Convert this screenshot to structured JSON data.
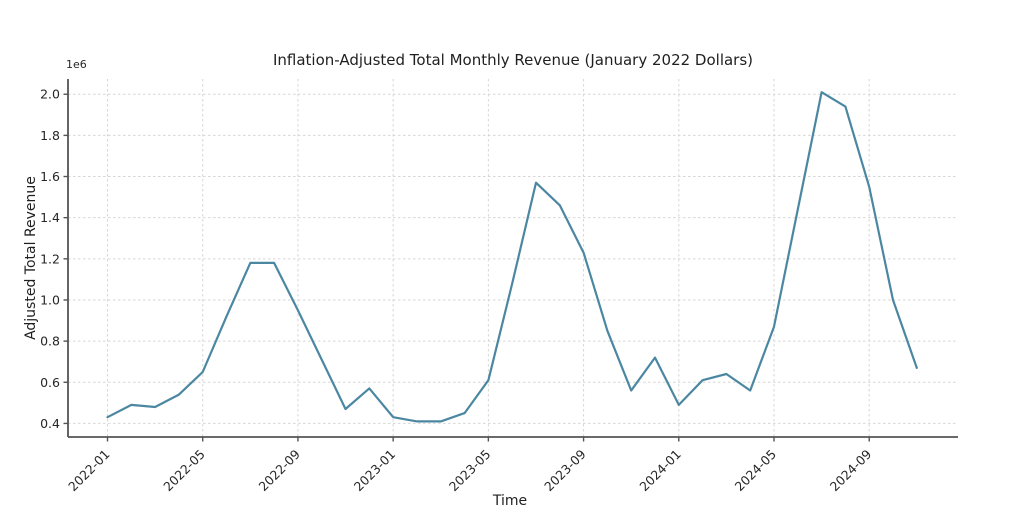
{
  "chart_data": {
    "type": "line",
    "title": "Inflation-Adjusted Total Monthly Revenue (January 2022 Dollars)",
    "xlabel": "Time",
    "ylabel": "Adjusted Total Revenue",
    "y_axis_multiplier_label": "1e6",
    "x": [
      "2022-01",
      "2022-02",
      "2022-03",
      "2022-04",
      "2022-05",
      "2022-06",
      "2022-07",
      "2022-08",
      "2022-09",
      "2022-10",
      "2022-11",
      "2022-12",
      "2023-01",
      "2023-02",
      "2023-03",
      "2023-04",
      "2023-05",
      "2023-06",
      "2023-07",
      "2023-08",
      "2023-09",
      "2023-10",
      "2023-11",
      "2023-12",
      "2024-01",
      "2024-02",
      "2024-03",
      "2024-04",
      "2024-05",
      "2024-06",
      "2024-07",
      "2024-08",
      "2024-09",
      "2024-10",
      "2024-11"
    ],
    "values_millions": [
      0.43,
      0.49,
      0.48,
      0.54,
      0.65,
      0.92,
      1.18,
      1.18,
      0.95,
      0.71,
      0.47,
      0.57,
      0.43,
      0.41,
      0.41,
      0.45,
      0.61,
      1.08,
      1.57,
      1.46,
      1.23,
      0.85,
      0.56,
      0.72,
      0.49,
      0.61,
      0.64,
      0.56,
      0.87,
      1.44,
      2.01,
      1.94,
      1.55,
      1.0,
      0.67
    ],
    "x_tick_labels": [
      "2022-01",
      "2022-05",
      "2022-09",
      "2023-01",
      "2023-05",
      "2023-09",
      "2024-01",
      "2024-05",
      "2024-09"
    ],
    "y_tick_values": [
      0.4,
      0.6,
      0.8,
      1.0,
      1.2,
      1.4,
      1.6,
      1.8,
      2.0
    ],
    "ylim_millions": [
      0.334,
      2.074
    ],
    "xlim_month_index": [
      -1.66,
      35.73
    ],
    "x_tick_rotation_deg": 45,
    "grid": "dashed-light-gray",
    "legend": "none",
    "line_color": "#4c87a2",
    "grid_color": "#d6d6d6",
    "spine_color": "#545454",
    "tick_label_color": "#262626"
  }
}
